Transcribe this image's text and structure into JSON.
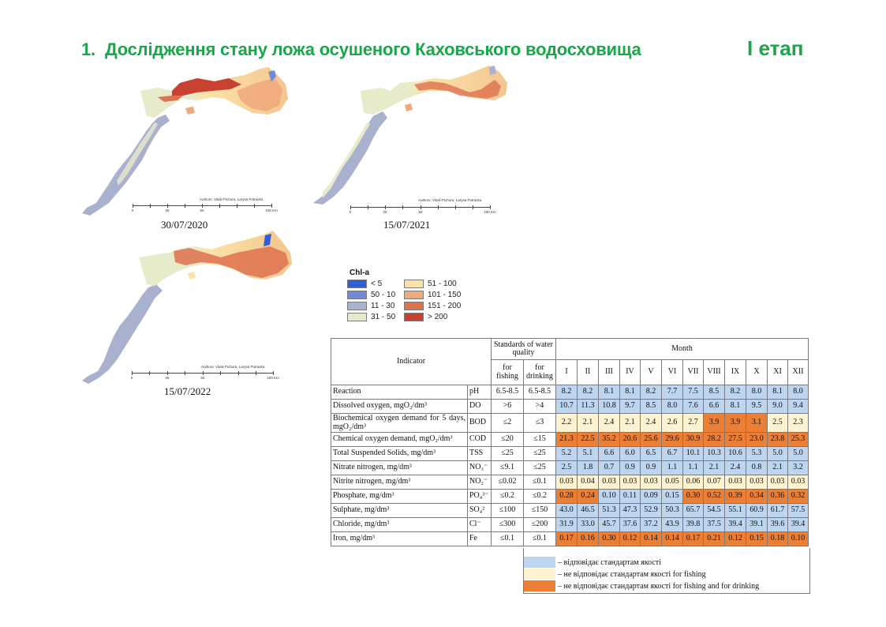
{
  "header": {
    "number": "1.",
    "title": "Дослідження стану ложа осушеного Каховського водосховища",
    "stage": "І етап",
    "title_color": "#1aa64a"
  },
  "maps": [
    {
      "date": "30/07/2020",
      "authors": "Authors: Vitalii Pichura, Larysa Potravka",
      "scale_labels": [
        "0",
        "25",
        "50",
        "100 Km"
      ]
    },
    {
      "date": "15/07/2021",
      "authors": "Authors: Vitalii Pichura, Larysa Potravka",
      "scale_labels": [
        "0",
        "25",
        "50",
        "100 Km"
      ]
    },
    {
      "date": "15/07/2022",
      "authors": "Authors: Vitalii Pichura, Larysa Potravka",
      "scale_labels": [
        "0",
        "25",
        "50",
        "100 Km"
      ]
    }
  ],
  "chl_legend": {
    "title": "Chl-a",
    "items": [
      {
        "label": "< 5",
        "color": "#2e5fd4"
      },
      {
        "label": "51 - 100",
        "color": "#fbe3a8"
      },
      {
        "label": "50 - 10",
        "color": "#7189d6"
      },
      {
        "label": "101 - 150",
        "color": "#efa87c"
      },
      {
        "label": "11 - 30",
        "color": "#a9b1cf"
      },
      {
        "label": "151 - 200",
        "color": "#de7150"
      },
      {
        "label": "31 - 50",
        "color": "#e8ebc9"
      },
      {
        "label": "> 200",
        "color": "#c8402f"
      }
    ]
  },
  "table": {
    "headers": {
      "indicator": "Indicator",
      "standards": "Standards of water quality",
      "fishing": "for fishing",
      "drinking": "for drinking",
      "month": "Month",
      "months": [
        "I",
        "II",
        "III",
        "IV",
        "V",
        "VI",
        "VII",
        "VIII",
        "IX",
        "X",
        "XI",
        "XII"
      ]
    },
    "rows": [
      {
        "indicator": "Reaction",
        "abbr": "pH",
        "fishing": "6.5-8.5",
        "drinking": "6.5-8.5",
        "values": [
          "8.2",
          "8.2",
          "8.1",
          "8.1",
          "8.2",
          "7.7",
          "7.5",
          "8.5",
          "8.2",
          "8.0",
          "8.1",
          "8.0"
        ],
        "status": [
          "ok",
          "ok",
          "ok",
          "ok",
          "ok",
          "ok",
          "ok",
          "ok",
          "ok",
          "ok",
          "ok",
          "ok"
        ]
      },
      {
        "indicator": "Dissolved oxygen, mgO₂/dm³",
        "abbr": "DO",
        "fishing": ">6",
        "drinking": ">4",
        "values": [
          "10.7",
          "11.3",
          "10.8",
          "9.7",
          "8.5",
          "8.0",
          "7.6",
          "6.6",
          "8.1",
          "9.5",
          "9.0",
          "9.4"
        ],
        "status": [
          "ok",
          "ok",
          "ok",
          "ok",
          "ok",
          "ok",
          "ok",
          "ok",
          "ok",
          "ok",
          "ok",
          "ok"
        ]
      },
      {
        "indicator": "Biochemical oxygen demand for 5 days, mgO₂/dm³",
        "abbr": "BOD",
        "fishing": "≤2",
        "drinking": "≤3",
        "values": [
          "2.2",
          "2.1",
          "2.4",
          "2.1",
          "2.4",
          "2.6",
          "2.7",
          "3.9",
          "3.9",
          "3.1",
          "2.5",
          "2.3"
        ],
        "status": [
          "fish",
          "fish",
          "fish",
          "fish",
          "fish",
          "fish",
          "fish",
          "bad",
          "bad",
          "bad",
          "fish",
          "fish"
        ]
      },
      {
        "indicator": "Chemical oxygen demand, mgO₂/dm³",
        "abbr": "COD",
        "fishing": "≤20",
        "drinking": "≤15",
        "values": [
          "21.3",
          "22.5",
          "35.2",
          "20.6",
          "25.6",
          "29.6",
          "30.9",
          "28.2",
          "27.5",
          "23.0",
          "23.8",
          "25.3"
        ],
        "status": [
          "bad",
          "bad",
          "bad",
          "bad",
          "bad",
          "bad",
          "bad",
          "bad",
          "bad",
          "bad",
          "bad",
          "bad"
        ]
      },
      {
        "indicator": "Total Suspended Solids, mg/dm³",
        "abbr": "TSS",
        "fishing": "≤25",
        "drinking": "≤25",
        "values": [
          "5.2",
          "5.1",
          "6.6",
          "6.0",
          "6.5",
          "6.7",
          "10.1",
          "10.3",
          "10.6",
          "5.3",
          "5.0",
          "5.0"
        ],
        "status": [
          "ok",
          "ok",
          "ok",
          "ok",
          "ok",
          "ok",
          "ok",
          "ok",
          "ok",
          "ok",
          "ok",
          "ok"
        ]
      },
      {
        "indicator": "Nitrate nitrogen, mg/dm³",
        "abbr": "NO₃⁻",
        "fishing": "≤9.1",
        "drinking": "≤25",
        "values": [
          "2.5",
          "1.8",
          "0.7",
          "0.9",
          "0.9",
          "1.1",
          "1.1",
          "2.1",
          "2.4",
          "0.8",
          "2.1",
          "3.2"
        ],
        "status": [
          "ok",
          "ok",
          "ok",
          "ok",
          "ok",
          "ok",
          "ok",
          "ok",
          "ok",
          "ok",
          "ok",
          "ok"
        ]
      },
      {
        "indicator": "Nitrite nitrogen, mg/dm³",
        "abbr": "NO₂⁻",
        "fishing": "≤0.02",
        "drinking": "≤0.1",
        "values": [
          "0.03",
          "0.04",
          "0.03",
          "0.03",
          "0.03",
          "0.05",
          "0.06",
          "0.07",
          "0.03",
          "0.03",
          "0.03",
          "0.03"
        ],
        "status": [
          "fish",
          "fish",
          "fish",
          "fish",
          "fish",
          "fish",
          "fish",
          "fish",
          "fish",
          "fish",
          "fish",
          "fish"
        ]
      },
      {
        "indicator": "Phosphate, mg/dm³",
        "abbr": "PO₄³⁻",
        "fishing": "≤0.2",
        "drinking": "≤0.2",
        "values": [
          "0.28",
          "0.24",
          "0.10",
          "0.11",
          "0.09",
          "0.15",
          "0.30",
          "0.52",
          "0.39",
          "0.34",
          "0.36",
          "0.32"
        ],
        "status": [
          "bad",
          "bad",
          "ok",
          "ok",
          "ok",
          "ok",
          "bad",
          "bad",
          "bad",
          "bad",
          "bad",
          "bad"
        ]
      },
      {
        "indicator": "Sulphate, mg/dm³",
        "abbr": "SO₄²",
        "fishing": "≤100",
        "drinking": "≤150",
        "values": [
          "43.0",
          "46.5",
          "51.3",
          "47.3",
          "52.9",
          "50.3",
          "65.7",
          "54.5",
          "55.1",
          "60.9",
          "61.7",
          "57.5"
        ],
        "status": [
          "ok",
          "ok",
          "ok",
          "ok",
          "ok",
          "ok",
          "ok",
          "ok",
          "ok",
          "ok",
          "ok",
          "ok"
        ]
      },
      {
        "indicator": "Chloride, mg/dm³",
        "abbr": "Cl⁻",
        "fishing": "≤300",
        "drinking": "≤200",
        "values": [
          "31.9",
          "33.0",
          "45.7",
          "37.6",
          "37.2",
          "43.9",
          "39.8",
          "37.5",
          "39.4",
          "39.1",
          "39.6",
          "39.4"
        ],
        "status": [
          "ok",
          "ok",
          "ok",
          "ok",
          "ok",
          "ok",
          "ok",
          "ok",
          "ok",
          "ok",
          "ok",
          "ok"
        ]
      },
      {
        "indicator": "Iron, mg/dm³",
        "abbr": "Fe",
        "fishing": "≤0.1",
        "drinking": "≤0.1",
        "values": [
          "0.17",
          "0.16",
          "0.30",
          "0.12",
          "0.14",
          "0.14",
          "0.17",
          "0.21",
          "0.12",
          "0.15",
          "0.18",
          "0.10"
        ],
        "status": [
          "bad",
          "bad",
          "bad",
          "bad",
          "bad",
          "bad",
          "bad",
          "bad",
          "bad",
          "bad",
          "bad",
          "bad"
        ]
      }
    ]
  },
  "quality_key": {
    "items": [
      {
        "label": "– відповідає стандартам якості",
        "color": "#bdd5ee"
      },
      {
        "label": "– не відповідає стандартам якості for fishing",
        "color": "#fff2d0"
      },
      {
        "label": "– не відповідає стандартам якості for fishing and for drinking",
        "color": "#ec7f36"
      }
    ]
  }
}
